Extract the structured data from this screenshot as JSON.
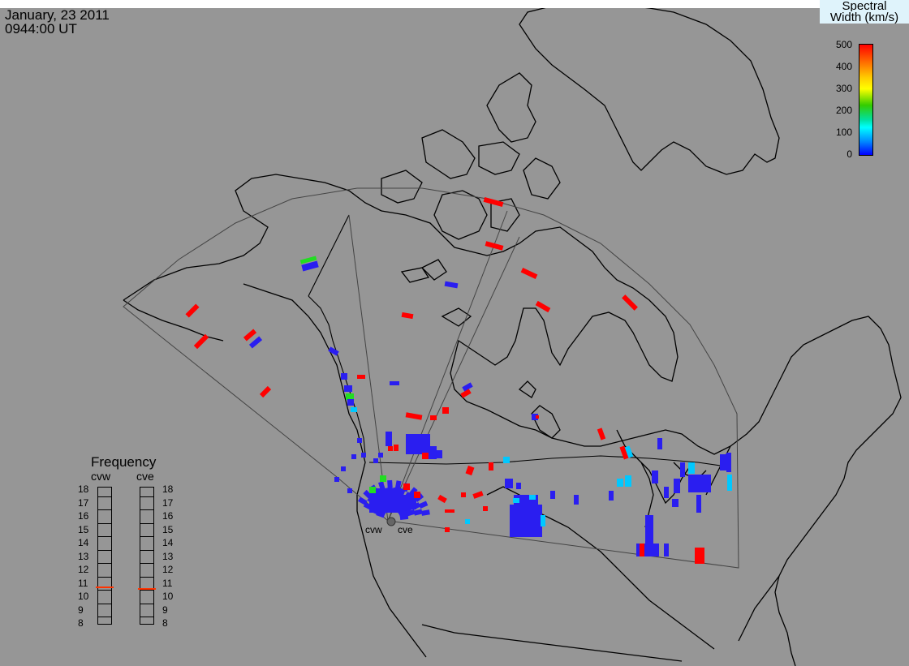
{
  "header": {
    "date": "January, 23 2011",
    "time": "0944:00 UT"
  },
  "colorbar": {
    "title_line1": "Spectral",
    "title_line2": "Width (km/s)",
    "ticks": [
      "500",
      "400",
      "300",
      "200",
      "100",
      "0"
    ],
    "colors": [
      "#ff0000",
      "#ff8800",
      "#ffff00",
      "#00cc00",
      "#00ffff",
      "#0000ff"
    ]
  },
  "frequency": {
    "title": "Frequency",
    "radar_west": "cvw",
    "radar_east": "cve",
    "scale": [
      "18",
      "17",
      "16",
      "15",
      "14",
      "13",
      "12",
      "11",
      "10",
      "9",
      "8"
    ],
    "cvw_value": 10.7,
    "cve_value": 10.6,
    "marker_color": "#ff3300"
  },
  "radars": {
    "west_label": "cvw",
    "east_label": "cve"
  },
  "colors": {
    "background": "#969696",
    "coast": "#000000",
    "fov": "#555555",
    "low_width": "#2a1ef0",
    "high_width": "#ff0000",
    "mid_width": "#00c8ff",
    "green": "#22dd22"
  }
}
